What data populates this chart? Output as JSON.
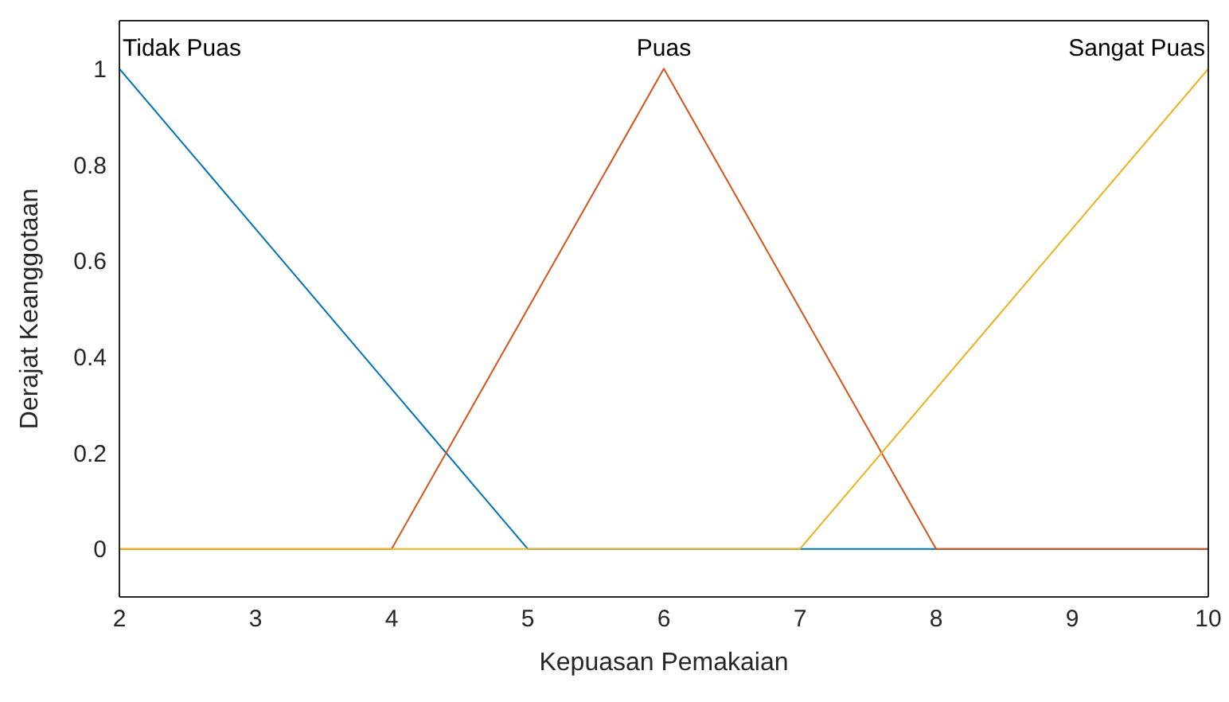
{
  "chart_data": {
    "type": "line",
    "xlabel": "Kepuasan Pemakaian",
    "ylabel": "Derajat Keanggotaan",
    "xlim": [
      2,
      10
    ],
    "ylim": [
      -0.1,
      1.1
    ],
    "xticks": [
      2,
      3,
      4,
      5,
      6,
      7,
      8,
      9,
      10
    ],
    "yticks": [
      0,
      0.2,
      0.4,
      0.6,
      0.8,
      1
    ],
    "marker": "none",
    "line_style": "solid",
    "series": [
      {
        "name": "Tidak Puas",
        "color": "#0072bd",
        "x": [
          2,
          5,
          10
        ],
        "values": [
          1,
          0,
          0
        ]
      },
      {
        "name": "Puas",
        "color": "#d95319",
        "x": [
          2,
          4,
          6,
          8,
          10
        ],
        "values": [
          0,
          0,
          1,
          0,
          0
        ]
      },
      {
        "name": "Sangat Puas",
        "color": "#edb120",
        "x": [
          2,
          7,
          10
        ],
        "values": [
          0,
          0,
          1
        ]
      }
    ]
  }
}
